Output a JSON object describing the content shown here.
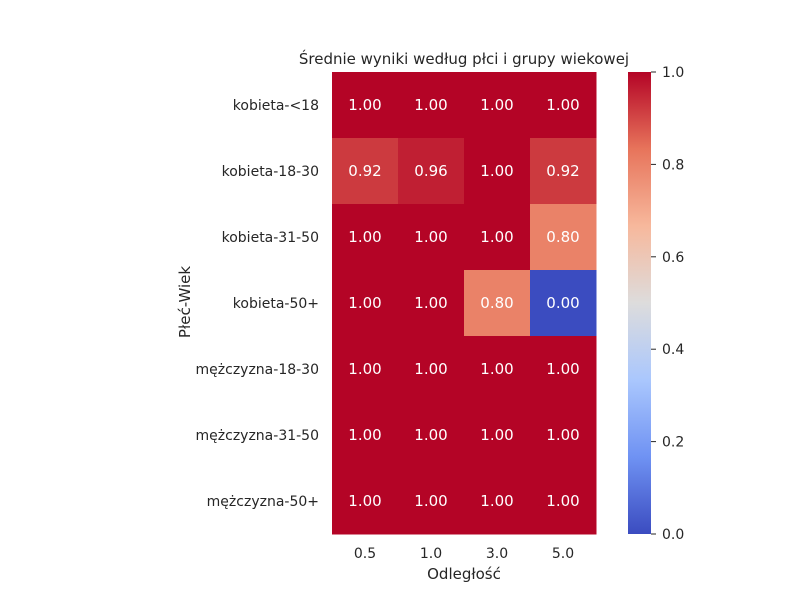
{
  "chart_data": {
    "type": "heatmap",
    "title": "Średnie wyniki według płci i grupy wiekowej",
    "xlabel": "Odległość",
    "ylabel": "Płeć-Wiek",
    "x_categories": [
      "0.5",
      "1.0",
      "3.0",
      "5.0"
    ],
    "y_categories": [
      "kobieta-<18",
      "kobieta-18-30",
      "kobieta-31-50",
      "kobieta-50+",
      "mężczyzna-18-30",
      "mężczyzna-31-50",
      "mężczyzna-50+"
    ],
    "values": [
      [
        1.0,
        1.0,
        1.0,
        1.0
      ],
      [
        0.92,
        0.96,
        1.0,
        0.92
      ],
      [
        1.0,
        1.0,
        1.0,
        0.8
      ],
      [
        1.0,
        1.0,
        0.8,
        0.0
      ],
      [
        1.0,
        1.0,
        1.0,
        1.0
      ],
      [
        1.0,
        1.0,
        1.0,
        1.0
      ],
      [
        1.0,
        1.0,
        1.0,
        1.0
      ]
    ],
    "cell_labels": [
      [
        "1.00",
        "1.00",
        "1.00",
        "1.00"
      ],
      [
        "0.92",
        "0.96",
        "1.00",
        "0.92"
      ],
      [
        "1.00",
        "1.00",
        "1.00",
        "0.80"
      ],
      [
        "1.00",
        "1.00",
        "0.80",
        "0.00"
      ],
      [
        "1.00",
        "1.00",
        "1.00",
        "1.00"
      ],
      [
        "1.00",
        "1.00",
        "1.00",
        "1.00"
      ],
      [
        "1.00",
        "1.00",
        "1.00",
        "1.00"
      ]
    ],
    "colormap": "coolwarm",
    "colormap_stops": [
      "#3b4cc0",
      "#6f92f3",
      "#aac7fd",
      "#dddcdc",
      "#f7b89c",
      "#e7745b",
      "#b40426"
    ],
    "colorbar_range": [
      0.0,
      1.0
    ],
    "colorbar_ticks": [
      "0.0",
      "0.2",
      "0.4",
      "0.6",
      "0.8",
      "1.0"
    ]
  }
}
